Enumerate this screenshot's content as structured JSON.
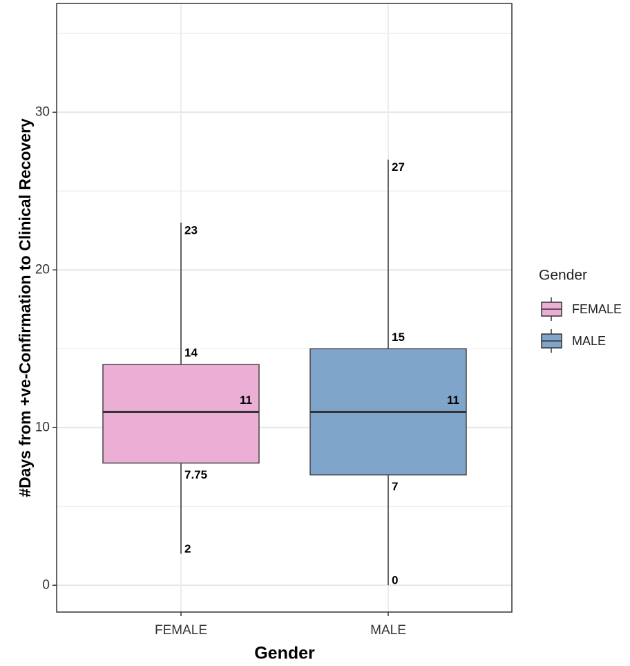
{
  "chart_data": {
    "type": "box",
    "x_label": "Gender",
    "y_label": "#Days from +ve-Confirmation to Clinical Recovery",
    "categories": [
      "FEMALE",
      "MALE"
    ],
    "series": [
      {
        "name": "FEMALE",
        "color": "#ebaed4",
        "min": 2,
        "q1": 7.75,
        "median": 11,
        "q3": 14,
        "max": 23
      },
      {
        "name": "MALE",
        "color": "#7fa5cb",
        "min": 0,
        "q1": 7,
        "median": 11,
        "q3": 15,
        "max": 27
      }
    ],
    "ylim": [
      -1.7,
      36.9
    ],
    "yticks": [
      0,
      10,
      20,
      30
    ],
    "minor_gridlines": [
      5,
      15,
      25,
      35
    ],
    "grid": true,
    "legend_title": "Gender",
    "legend": "right"
  }
}
